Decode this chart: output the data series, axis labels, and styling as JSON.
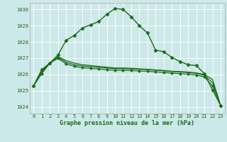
{
  "series": [
    {
      "name": "line_diamond",
      "x": [
        0,
        1,
        2,
        3,
        4,
        5,
        6,
        7,
        8,
        9,
        10,
        11,
        12,
        13,
        14,
        15,
        16,
        17,
        18,
        19,
        20,
        21,
        22,
        23
      ],
      "y": [
        1025.3,
        1026.3,
        1026.7,
        1027.2,
        1028.1,
        1028.4,
        1028.85,
        1029.05,
        1029.25,
        1029.7,
        1030.05,
        1030.0,
        1029.55,
        1029.0,
        1028.55,
        1027.5,
        1027.4,
        1027.05,
        1026.8,
        1026.6,
        1026.55,
        1026.05,
        1025.05,
        1024.1
      ],
      "color": "#1a6b1a",
      "marker": "D",
      "markersize": 2.5,
      "linewidth": 1.0
    },
    {
      "name": "line_flat1",
      "x": [
        0,
        1,
        2,
        3,
        4,
        5,
        6,
        7,
        8,
        9,
        10,
        11,
        12,
        13,
        14,
        15,
        16,
        17,
        18,
        19,
        20,
        21,
        22,
        23
      ],
      "y": [
        1025.3,
        1026.2,
        1026.7,
        1027.1,
        1026.85,
        1026.7,
        1026.6,
        1026.55,
        1026.5,
        1026.45,
        1026.4,
        1026.4,
        1026.38,
        1026.35,
        1026.32,
        1026.28,
        1026.25,
        1026.2,
        1026.18,
        1026.15,
        1026.1,
        1026.0,
        1025.7,
        1024.1
      ],
      "color": "#1a6b1a",
      "marker": null,
      "markersize": 0,
      "linewidth": 0.9
    },
    {
      "name": "line_flat2",
      "x": [
        0,
        1,
        2,
        3,
        4,
        5,
        6,
        7,
        8,
        9,
        10,
        11,
        12,
        13,
        14,
        15,
        16,
        17,
        18,
        19,
        20,
        21,
        22,
        23
      ],
      "y": [
        1025.3,
        1026.15,
        1026.7,
        1027.05,
        1026.75,
        1026.6,
        1026.52,
        1026.48,
        1026.44,
        1026.4,
        1026.36,
        1026.36,
        1026.34,
        1026.32,
        1026.3,
        1026.26,
        1026.23,
        1026.18,
        1026.15,
        1026.12,
        1026.07,
        1025.95,
        1025.5,
        1024.1
      ],
      "color": "#1a6b1a",
      "marker": null,
      "markersize": 0,
      "linewidth": 0.9
    },
    {
      "name": "line_cross",
      "x": [
        0,
        1,
        2,
        3,
        4,
        5,
        6,
        7,
        8,
        9,
        10,
        11,
        12,
        13,
        14,
        15,
        16,
        17,
        18,
        19,
        20,
        21,
        22,
        23
      ],
      "y": [
        1025.3,
        1026.05,
        1026.7,
        1027.0,
        1026.65,
        1026.5,
        1026.42,
        1026.38,
        1026.34,
        1026.3,
        1026.26,
        1026.26,
        1026.24,
        1026.22,
        1026.2,
        1026.16,
        1026.13,
        1026.08,
        1026.05,
        1026.02,
        1025.97,
        1025.85,
        1025.3,
        1024.1
      ],
      "color": "#1a6b1a",
      "marker": "P",
      "markersize": 2.5,
      "linewidth": 0.9
    }
  ],
  "background_color": "#cde8e8",
  "grid_color": "#ffffff",
  "text_color": "#1a6b1a",
  "xlabel": "Graphe pression niveau de la mer (hPa)",
  "xlabel_fontsize": 6.0,
  "ylim": [
    1023.6,
    1030.4
  ],
  "xlim": [
    -0.5,
    23.5
  ],
  "yticks": [
    1024,
    1025,
    1026,
    1027,
    1028,
    1029,
    1030
  ],
  "xticks": [
    0,
    1,
    2,
    3,
    4,
    5,
    6,
    7,
    8,
    9,
    10,
    11,
    12,
    13,
    14,
    15,
    16,
    17,
    18,
    19,
    20,
    21,
    22,
    23
  ],
  "tick_fontsize": 5.0
}
